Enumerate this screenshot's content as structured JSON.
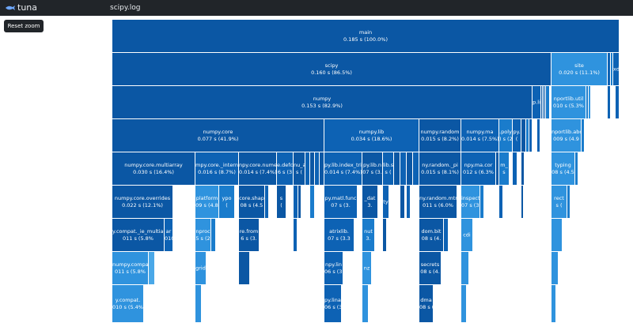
{
  "navbar": {
    "brand": "tuna",
    "file": "scipy.log"
  },
  "toolbar": {
    "reset_label": "Reset zoom"
  },
  "colors": {
    "navbar": "#212529",
    "accent": "#0d62b4",
    "light": "#4aa8e8"
  },
  "flame": {
    "main": {
      "name": "main",
      "time": "0.185 s (100.0%)"
    },
    "scipy": {
      "name": "scipy",
      "time": "0.160 s (86.5%)"
    },
    "site": {
      "name": "site",
      "time": "0.020 s (11.1%)"
    },
    "site_sibling": {
      "name": "xde"
    },
    "numpy": {
      "name": "numpy",
      "time": "0.153 s (82.9%)"
    },
    "numpy_small": {
      "name": "p.li"
    },
    "importlib_util": {
      "name": "nportlib.util",
      "time": "010 s (5.3%"
    },
    "numpy_core": {
      "name": "numpy.core",
      "time": "0.077 s (41.9%)"
    },
    "numpy_lib": {
      "name": "numpy.lib",
      "time": "0.034 s (18.6%)"
    },
    "numpy_random": {
      "name": "numpy.random",
      "time": "0.015 s (8.2%)"
    },
    "numpy_ma": {
      "name": "numpy.ma",
      "time": "0.014 s (7.5%)"
    },
    "numpy_polynomial": {
      "name": ".poly",
      "time": ") s (2"
    },
    "numpy_small2": {
      "name": "py.",
      "time": "("
    },
    "importlib_abc": {
      "name": "nportlib.abc",
      "time": "009 s (4.9"
    },
    "multiarray": {
      "name": "numpy.core.multiarray",
      "time": "0.030 s (16.4%)"
    },
    "core_internal": {
      "name": "mpy.core._intern",
      "time": "0.016 s (8.7%)"
    },
    "core_numeric": {
      "name": "npy.core.numeri",
      "time": "0.014 s (7.4%)"
    },
    "core_defchararray": {
      "name": "e.defc",
      "time": "6 s (3"
    },
    "core_small": {
      "name": "nu_a",
      "time": "s ("
    },
    "lib_index_tricks": {
      "name": "py.lib.index_tri",
      "time": "0.014 s (7.4%)"
    },
    "lib_npyio": {
      "name": "py.lib.n",
      "time": "07 s (3."
    },
    "lib_small": {
      "name": "lib.s",
      "time": "s ("
    },
    "random_pickle": {
      "name": "ny.random._pi",
      "time": "0.015 s (8.1%)"
    },
    "ma_core": {
      "name": "npy.ma.cor",
      "time": "012 s (6.3%"
    },
    "ma_small": {
      "name": "m_",
      "time": "s"
    },
    "typing": {
      "name": "typing",
      "time": "08 s (4.5"
    },
    "core_overrides": {
      "name": "numpy.core.overrides",
      "time": "0.022 s (12.1%)"
    },
    "platform": {
      "name": "platform",
      "time": "09 s (4.8"
    },
    "typing_small": {
      "name": "ypo",
      "time": "("
    },
    "core_shape_base": {
      "name": "core.shap",
      "time": "08 s (4.5"
    },
    "core_small2": {
      "name": "s",
      "time": "("
    },
    "matrixlib_func": {
      "name": "py.matl.func",
      "time": "07 s (3."
    },
    "lib_small2": {
      "name": "_dat",
      "time": "3."
    },
    "lib_small3": {
      "name": "ty",
      "time": ""
    },
    "random_mtrand": {
      "name": "ny.random.mtr",
      "time": "011 s (6.0%"
    },
    "inspect": {
      "name": "inspect",
      "time": "07 s (3."
    },
    "collections": {
      "name": "rect",
      "time": "s ("
    },
    "compat_multiarray": {
      "name": "y.compat._ie_multiar",
      "time": "011 s (5.8%"
    },
    "compat_small": {
      "name": "ar",
      "time": "010 s (5.3%"
    },
    "subprocess": {
      "name": "nproc",
      "time": "5 s (2"
    },
    "core_fromnumeric": {
      "name": "re.from",
      "time": "6 s (3."
    },
    "matrixlib": {
      "name": "atrixlib.",
      "time": "07 s (3.3"
    },
    "lib_small4": {
      "name": "nut",
      "time": "3."
    },
    "random_bit": {
      "name": "dom.bit",
      "time": "08 s (4."
    },
    "ma_small2": {
      "name": "cdi",
      "time": ""
    },
    "numpy_compat": {
      "name": "numpy.compat",
      "time": "011 s (5.8%"
    },
    "grid": {
      "name": "grid",
      "time": ""
    },
    "numpy_lin": {
      "name": "npy.lin",
      "time": "06 s (3."
    },
    "lib_small5": {
      "name": "nz",
      "time": ""
    },
    "random_secrets": {
      "name": "secrets",
      "time": "08 s (4."
    },
    "numpy_compat2": {
      "name": "y.compat.",
      "time": "010 s (5.4%"
    },
    "numpy_linalg": {
      "name": "py.linalg",
      "time": "06 s (3."
    },
    "random_dma": {
      "name": "dma",
      "time": "08 s (4."
    }
  }
}
